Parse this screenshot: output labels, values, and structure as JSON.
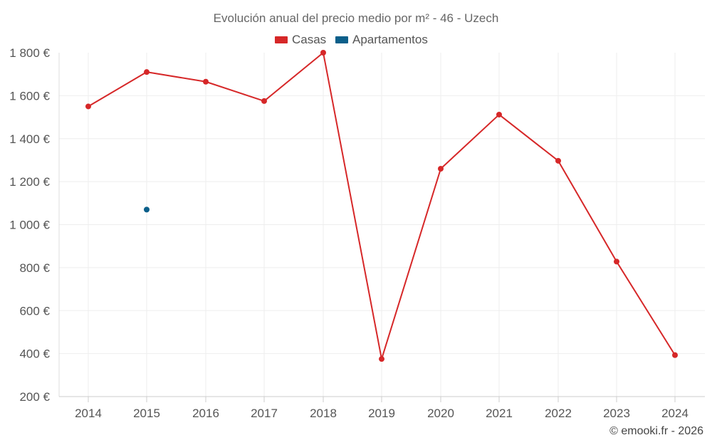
{
  "chart_data": {
    "type": "line",
    "title": "Evolución anual del precio medio por m² - 46 - Uzech",
    "categories": [
      "2014",
      "2015",
      "2016",
      "2017",
      "2018",
      "2019",
      "2020",
      "2021",
      "2022",
      "2023",
      "2024"
    ],
    "series": [
      {
        "name": "Casas",
        "color": "#d62728",
        "values": [
          1550,
          1710,
          1665,
          1575,
          1800,
          375,
          1260,
          1512,
          1297,
          828,
          393
        ]
      },
      {
        "name": "Apartamentos",
        "color": "#0b5f8a",
        "values": [
          null,
          1070,
          null,
          null,
          null,
          null,
          null,
          null,
          null,
          null,
          null
        ]
      }
    ],
    "y_ticks": [
      "1 800 €",
      "1 600 €",
      "1 400 €",
      "1 200 €",
      "1 000 €",
      "800 €",
      "600 €",
      "400 €",
      "200 €"
    ],
    "y_tick_values": [
      1800,
      1600,
      1400,
      1200,
      1000,
      800,
      600,
      400,
      200
    ],
    "ylim": [
      200,
      1800
    ],
    "grid": true,
    "legend_position": "top-center",
    "footer": "© emooki.fr - 2026"
  }
}
